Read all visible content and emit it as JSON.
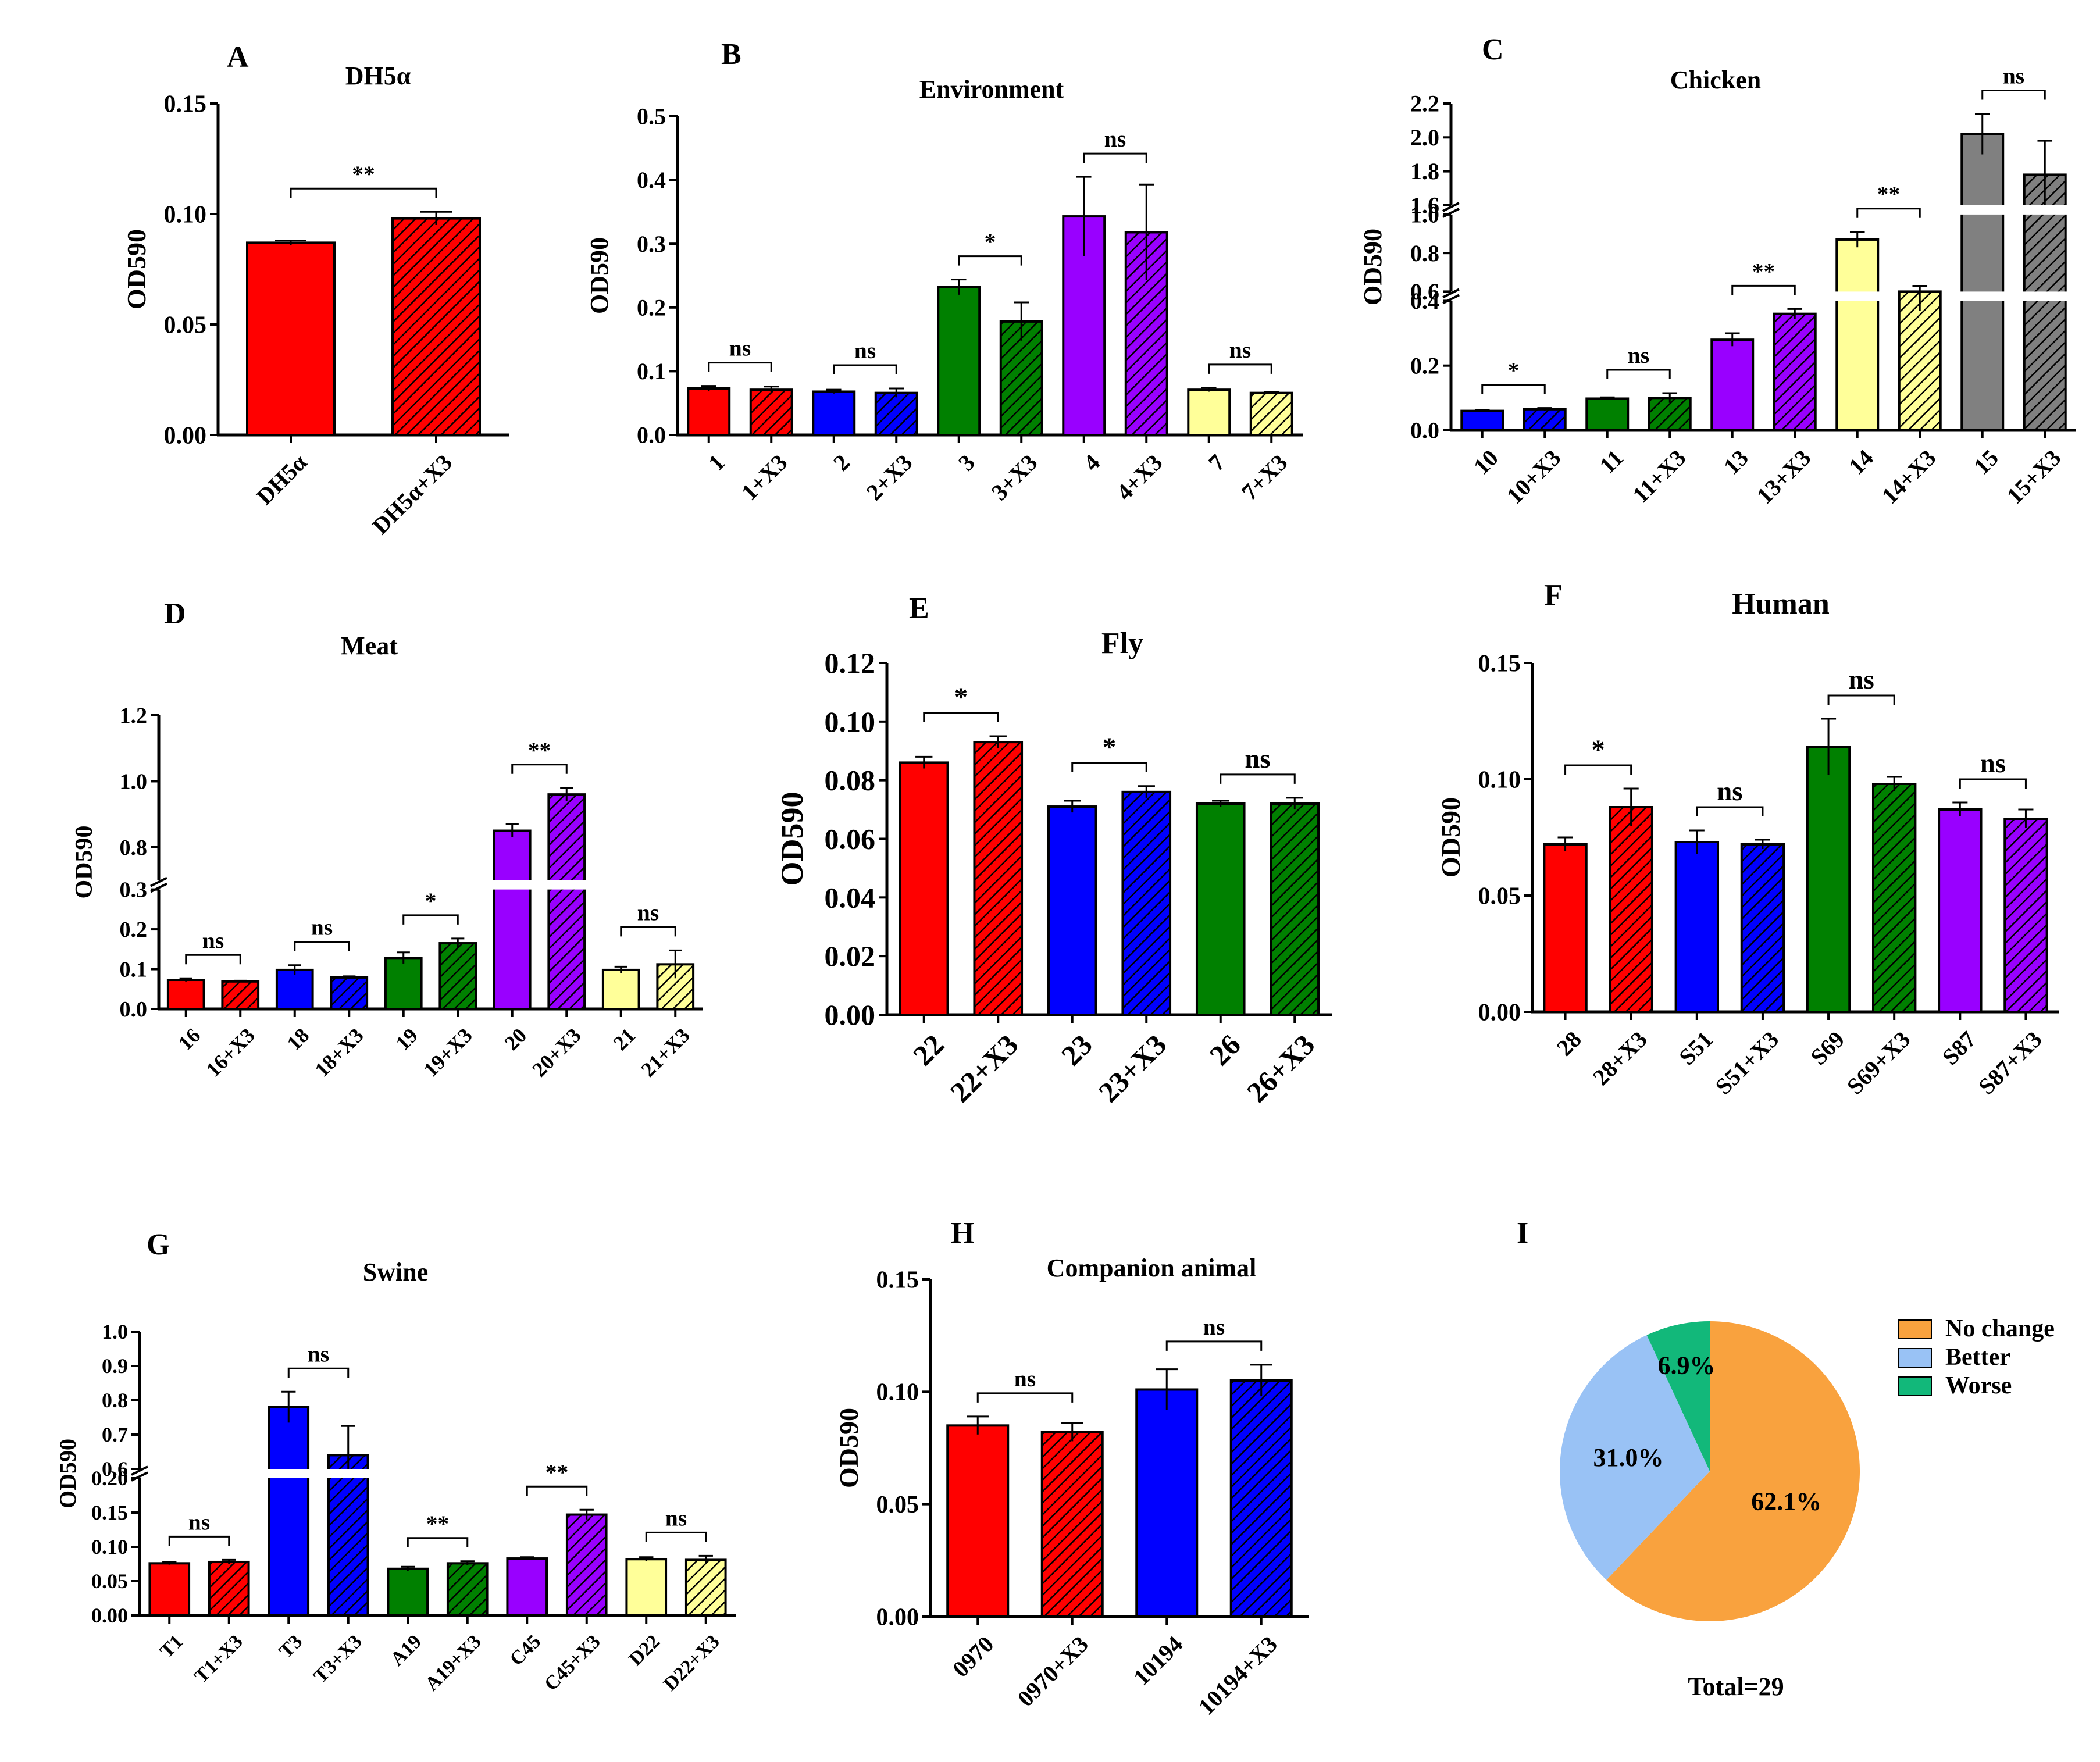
{
  "colors": {
    "red": "#ff0000",
    "blue": "#0000ff",
    "green": "#008000",
    "purple": "#9900ff",
    "yellow": "#ffff99",
    "gray": "#808080",
    "pie_orange": "#f9a23e",
    "pie_blue": "#99c2f5",
    "pie_green": "#12b87a"
  },
  "chart_data": [
    {
      "id": "A",
      "letter": "A",
      "type": "bar",
      "title": "DH5α",
      "ylabel": "OD590",
      "ylim": [
        0,
        0.15
      ],
      "yticks": [
        {
          "v": 0,
          "label": "0.00"
        },
        {
          "v": 0.05,
          "label": "0.05"
        },
        {
          "v": 0.1,
          "label": "0.10"
        },
        {
          "v": 0.15,
          "label": "0.15"
        }
      ],
      "bars": [
        {
          "label": "DH5α",
          "value": 0.087,
          "err": 0.001,
          "color": "red",
          "hatch": false
        },
        {
          "label": "DH5α+X3",
          "value": 0.098,
          "err": 0.003,
          "color": "red",
          "hatch": true
        }
      ],
      "comparisons": [
        {
          "pair": [
            0,
            1
          ],
          "label": "**"
        }
      ]
    },
    {
      "id": "B",
      "letter": "B",
      "type": "bar",
      "title": "Environment",
      "ylabel": "OD590",
      "ylim": [
        0,
        0.5
      ],
      "yticks": [
        {
          "v": 0,
          "label": "0.0"
        },
        {
          "v": 0.1,
          "label": "0.1"
        },
        {
          "v": 0.2,
          "label": "0.2"
        },
        {
          "v": 0.3,
          "label": "0.3"
        },
        {
          "v": 0.4,
          "label": "0.4"
        },
        {
          "v": 0.5,
          "label": "0.5"
        }
      ],
      "bars": [
        {
          "label": "1",
          "value": 0.073,
          "err": 0.004,
          "color": "red",
          "hatch": false
        },
        {
          "label": "1+X3",
          "value": 0.071,
          "err": 0.005,
          "color": "red",
          "hatch": true
        },
        {
          "label": "2",
          "value": 0.068,
          "err": 0.003,
          "color": "blue",
          "hatch": false
        },
        {
          "label": "2+X3",
          "value": 0.066,
          "err": 0.007,
          "color": "blue",
          "hatch": true
        },
        {
          "label": "3",
          "value": 0.232,
          "err": 0.012,
          "color": "green",
          "hatch": false
        },
        {
          "label": "3+X3",
          "value": 0.178,
          "err": 0.03,
          "color": "green",
          "hatch": true
        },
        {
          "label": "4",
          "value": 0.343,
          "err": 0.062,
          "color": "purple",
          "hatch": false
        },
        {
          "label": "4+X3",
          "value": 0.318,
          "err": 0.075,
          "color": "purple",
          "hatch": true
        },
        {
          "label": "7",
          "value": 0.071,
          "err": 0.003,
          "color": "yellow",
          "hatch": false
        },
        {
          "label": "7+X3",
          "value": 0.066,
          "err": 0.002,
          "color": "yellow",
          "hatch": true
        }
      ],
      "comparisons": [
        {
          "pair": [
            0,
            1
          ],
          "label": "ns"
        },
        {
          "pair": [
            2,
            3
          ],
          "label": "ns"
        },
        {
          "pair": [
            4,
            5
          ],
          "label": "*"
        },
        {
          "pair": [
            6,
            7
          ],
          "label": "ns"
        },
        {
          "pair": [
            8,
            9
          ],
          "label": "ns"
        }
      ]
    },
    {
      "id": "C",
      "letter": "C",
      "type": "bar",
      "title": "Chicken",
      "ylabel": "OD590",
      "segments": [
        {
          "lo": 0,
          "hi": 0.4,
          "frac": 0.42
        },
        {
          "lo": 0.6,
          "hi": 1.0,
          "frac": 0.25
        },
        {
          "lo": 1.6,
          "hi": 2.2,
          "frac": 0.33
        }
      ],
      "yticks": [
        {
          "v": 0,
          "label": "0.0"
        },
        {
          "v": 0.2,
          "label": "0.2"
        },
        {
          "v": 0.4,
          "label": "0.4"
        },
        {
          "v": 0.6,
          "label": "0.6"
        },
        {
          "v": 0.8,
          "label": "0.8"
        },
        {
          "v": 1.0,
          "label": "1.0"
        },
        {
          "v": 1.6,
          "label": "1.6"
        },
        {
          "v": 1.8,
          "label": "1.8"
        },
        {
          "v": 2.0,
          "label": "2.0"
        },
        {
          "v": 2.2,
          "label": "2.2"
        }
      ],
      "bars": [
        {
          "label": "10",
          "value": 0.06,
          "err": 0.003,
          "color": "blue",
          "hatch": false
        },
        {
          "label": "10+X3",
          "value": 0.065,
          "err": 0.004,
          "color": "blue",
          "hatch": true
        },
        {
          "label": "11",
          "value": 0.098,
          "err": 0.004,
          "color": "green",
          "hatch": false
        },
        {
          "label": "11+X3",
          "value": 0.1,
          "err": 0.015,
          "color": "green",
          "hatch": true
        },
        {
          "label": "13",
          "value": 0.28,
          "err": 0.02,
          "color": "purple",
          "hatch": false
        },
        {
          "label": "13+X3",
          "value": 0.36,
          "err": 0.015,
          "color": "purple",
          "hatch": true
        },
        {
          "label": "14",
          "value": 0.87,
          "err": 0.04,
          "color": "yellow",
          "hatch": false
        },
        {
          "label": "14+X3",
          "value": 0.5,
          "err": 0.13,
          "color": "yellow",
          "hatch": true
        },
        {
          "label": "15",
          "value": 2.02,
          "err": 0.12,
          "color": "gray",
          "hatch": false
        },
        {
          "label": "15+X3",
          "value": 1.78,
          "err": 0.2,
          "color": "gray",
          "hatch": true
        }
      ],
      "comparisons": [
        {
          "pair": [
            0,
            1
          ],
          "label": "*"
        },
        {
          "pair": [
            2,
            3
          ],
          "label": "ns"
        },
        {
          "pair": [
            4,
            5
          ],
          "label": "**"
        },
        {
          "pair": [
            6,
            7
          ],
          "label": "**"
        },
        {
          "pair": [
            8,
            9
          ],
          "label": "ns"
        }
      ]
    },
    {
      "id": "D",
      "letter": "D",
      "type": "bar",
      "title": "Meat",
      "ylabel": "OD590",
      "segments": [
        {
          "lo": 0,
          "hi": 0.3,
          "frac": 0.42
        },
        {
          "lo": 0.7,
          "hi": 1.2,
          "frac": 0.58
        }
      ],
      "yticks": [
        {
          "v": 0,
          "label": "0.0"
        },
        {
          "v": 0.1,
          "label": "0.1"
        },
        {
          "v": 0.2,
          "label": "0.2"
        },
        {
          "v": 0.3,
          "label": "0.3"
        },
        {
          "v": 0.8,
          "label": "0.8"
        },
        {
          "v": 1.0,
          "label": "1.0"
        },
        {
          "v": 1.2,
          "label": "1.2"
        }
      ],
      "bars": [
        {
          "label": "16",
          "value": 0.073,
          "err": 0.004,
          "color": "red",
          "hatch": false
        },
        {
          "label": "16+X3",
          "value": 0.069,
          "err": 0.002,
          "color": "red",
          "hatch": true
        },
        {
          "label": "18",
          "value": 0.098,
          "err": 0.012,
          "color": "blue",
          "hatch": false
        },
        {
          "label": "18+X3",
          "value": 0.079,
          "err": 0.003,
          "color": "blue",
          "hatch": true
        },
        {
          "label": "19",
          "value": 0.128,
          "err": 0.014,
          "color": "green",
          "hatch": false
        },
        {
          "label": "19+X3",
          "value": 0.165,
          "err": 0.012,
          "color": "green",
          "hatch": true
        },
        {
          "label": "20",
          "value": 0.85,
          "err": 0.02,
          "color": "purple",
          "hatch": false
        },
        {
          "label": "20+X3",
          "value": 0.96,
          "err": 0.02,
          "color": "purple",
          "hatch": true
        },
        {
          "label": "21",
          "value": 0.098,
          "err": 0.008,
          "color": "yellow",
          "hatch": false
        },
        {
          "label": "21+X3",
          "value": 0.112,
          "err": 0.035,
          "color": "yellow",
          "hatch": true
        }
      ],
      "comparisons": [
        {
          "pair": [
            0,
            1
          ],
          "label": "ns"
        },
        {
          "pair": [
            2,
            3
          ],
          "label": "ns"
        },
        {
          "pair": [
            4,
            5
          ],
          "label": "*"
        },
        {
          "pair": [
            6,
            7
          ],
          "label": "**"
        },
        {
          "pair": [
            8,
            9
          ],
          "label": "ns"
        }
      ]
    },
    {
      "id": "E",
      "letter": "E",
      "type": "bar",
      "title": "Fly",
      "ylabel": "OD590",
      "ylim": [
        0,
        0.12
      ],
      "yticks": [
        {
          "v": 0,
          "label": "0.00"
        },
        {
          "v": 0.02,
          "label": "0.02"
        },
        {
          "v": 0.04,
          "label": "0.04"
        },
        {
          "v": 0.06,
          "label": "0.06"
        },
        {
          "v": 0.08,
          "label": "0.08"
        },
        {
          "v": 0.1,
          "label": "0.10"
        },
        {
          "v": 0.12,
          "label": "0.12"
        }
      ],
      "bars": [
        {
          "label": "22",
          "value": 0.086,
          "err": 0.002,
          "color": "red",
          "hatch": false
        },
        {
          "label": "22+X3",
          "value": 0.093,
          "err": 0.002,
          "color": "red",
          "hatch": true
        },
        {
          "label": "23",
          "value": 0.071,
          "err": 0.002,
          "color": "blue",
          "hatch": false
        },
        {
          "label": "23+X3",
          "value": 0.076,
          "err": 0.002,
          "color": "blue",
          "hatch": true
        },
        {
          "label": "26",
          "value": 0.072,
          "err": 0.001,
          "color": "green",
          "hatch": false
        },
        {
          "label": "26+X3",
          "value": 0.072,
          "err": 0.002,
          "color": "green",
          "hatch": true
        }
      ],
      "comparisons": [
        {
          "pair": [
            0,
            1
          ],
          "label": "*"
        },
        {
          "pair": [
            2,
            3
          ],
          "label": "*"
        },
        {
          "pair": [
            4,
            5
          ],
          "label": "ns"
        }
      ]
    },
    {
      "id": "F",
      "letter": "F",
      "type": "bar",
      "title": "Human",
      "ylabel": "OD590",
      "ylim": [
        0,
        0.15
      ],
      "yticks": [
        {
          "v": 0,
          "label": "0.00"
        },
        {
          "v": 0.05,
          "label": "0.05"
        },
        {
          "v": 0.1,
          "label": "0.10"
        },
        {
          "v": 0.15,
          "label": "0.15"
        }
      ],
      "bars": [
        {
          "label": "28",
          "value": 0.072,
          "err": 0.003,
          "color": "red",
          "hatch": false
        },
        {
          "label": "28+X3",
          "value": 0.088,
          "err": 0.008,
          "color": "red",
          "hatch": true
        },
        {
          "label": "S51",
          "value": 0.073,
          "err": 0.005,
          "color": "blue",
          "hatch": false
        },
        {
          "label": "S51+X3",
          "value": 0.072,
          "err": 0.002,
          "color": "blue",
          "hatch": true
        },
        {
          "label": "S69",
          "value": 0.114,
          "err": 0.012,
          "color": "green",
          "hatch": false
        },
        {
          "label": "S69+X3",
          "value": 0.098,
          "err": 0.003,
          "color": "green",
          "hatch": true
        },
        {
          "label": "S87",
          "value": 0.087,
          "err": 0.003,
          "color": "purple",
          "hatch": false
        },
        {
          "label": "S87+X3",
          "value": 0.083,
          "err": 0.004,
          "color": "purple",
          "hatch": true
        }
      ],
      "comparisons": [
        {
          "pair": [
            0,
            1
          ],
          "label": "*"
        },
        {
          "pair": [
            2,
            3
          ],
          "label": "ns"
        },
        {
          "pair": [
            4,
            5
          ],
          "label": "ns"
        },
        {
          "pair": [
            6,
            7
          ],
          "label": "ns"
        }
      ]
    },
    {
      "id": "G",
      "letter": "G",
      "type": "bar",
      "title": "Swine",
      "ylabel": "OD590",
      "segments": [
        {
          "lo": 0,
          "hi": 0.2,
          "frac": 0.5
        },
        {
          "lo": 0.6,
          "hi": 1.0,
          "frac": 0.5
        }
      ],
      "yticks": [
        {
          "v": 0,
          "label": "0.00"
        },
        {
          "v": 0.05,
          "label": "0.05"
        },
        {
          "v": 0.1,
          "label": "0.10"
        },
        {
          "v": 0.15,
          "label": "0.15"
        },
        {
          "v": 0.2,
          "label": "0.20"
        },
        {
          "v": 0.6,
          "label": "0.6"
        },
        {
          "v": 0.7,
          "label": "0.7"
        },
        {
          "v": 0.8,
          "label": "0.8"
        },
        {
          "v": 0.9,
          "label": "0.9"
        },
        {
          "v": 1.0,
          "label": "1.0"
        }
      ],
      "bars": [
        {
          "label": "T1",
          "value": 0.076,
          "err": 0.002,
          "color": "red",
          "hatch": false
        },
        {
          "label": "T1+X3",
          "value": 0.078,
          "err": 0.003,
          "color": "red",
          "hatch": true
        },
        {
          "label": "T3",
          "value": 0.78,
          "err": 0.045,
          "color": "blue",
          "hatch": false
        },
        {
          "label": "T3+X3",
          "value": 0.64,
          "err": 0.085,
          "color": "blue",
          "hatch": true
        },
        {
          "label": "A19",
          "value": 0.068,
          "err": 0.003,
          "color": "green",
          "hatch": false
        },
        {
          "label": "A19+X3",
          "value": 0.076,
          "err": 0.003,
          "color": "green",
          "hatch": true
        },
        {
          "label": "C45",
          "value": 0.083,
          "err": 0.002,
          "color": "purple",
          "hatch": false
        },
        {
          "label": "C45+X3",
          "value": 0.147,
          "err": 0.007,
          "color": "purple",
          "hatch": true
        },
        {
          "label": "D22",
          "value": 0.082,
          "err": 0.003,
          "color": "yellow",
          "hatch": false
        },
        {
          "label": "D22+X3",
          "value": 0.081,
          "err": 0.006,
          "color": "yellow",
          "hatch": true
        }
      ],
      "comparisons": [
        {
          "pair": [
            0,
            1
          ],
          "label": "ns"
        },
        {
          "pair": [
            2,
            3
          ],
          "label": "ns"
        },
        {
          "pair": [
            4,
            5
          ],
          "label": "**"
        },
        {
          "pair": [
            6,
            7
          ],
          "label": "**"
        },
        {
          "pair": [
            8,
            9
          ],
          "label": "ns"
        }
      ]
    },
    {
      "id": "H",
      "letter": "H",
      "type": "bar",
      "title": "Companion animal",
      "ylabel": "OD590",
      "ylim": [
        0,
        0.15
      ],
      "yticks": [
        {
          "v": 0,
          "label": "0.00"
        },
        {
          "v": 0.05,
          "label": "0.05"
        },
        {
          "v": 0.1,
          "label": "0.10"
        },
        {
          "v": 0.15,
          "label": "0.15"
        }
      ],
      "bars": [
        {
          "label": "0970",
          "value": 0.085,
          "err": 0.004,
          "color": "red",
          "hatch": false
        },
        {
          "label": "0970+X3",
          "value": 0.082,
          "err": 0.004,
          "color": "red",
          "hatch": true
        },
        {
          "label": "10194",
          "value": 0.101,
          "err": 0.009,
          "color": "blue",
          "hatch": false
        },
        {
          "label": "10194+X3",
          "value": 0.105,
          "err": 0.007,
          "color": "blue",
          "hatch": true
        }
      ],
      "comparisons": [
        {
          "pair": [
            0,
            1
          ],
          "label": "ns"
        },
        {
          "pair": [
            2,
            3
          ],
          "label": "ns"
        }
      ]
    },
    {
      "id": "I",
      "letter": "I",
      "type": "pie",
      "title": "Total=29",
      "slices": [
        {
          "name": "No change",
          "value": 62.1,
          "label": "62.1%",
          "color": "pie_orange"
        },
        {
          "name": "Better",
          "value": 31.0,
          "label": "31.0%",
          "color": "pie_blue"
        },
        {
          "name": "Worse",
          "value": 6.9,
          "label": "6.9%",
          "color": "pie_green"
        }
      ]
    }
  ]
}
